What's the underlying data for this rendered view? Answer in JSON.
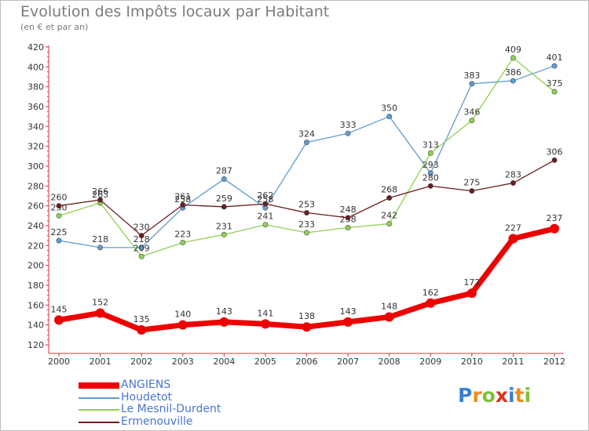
{
  "header": {
    "title": "Evolution des Impôts locaux par Habitant",
    "subtitle": "(en € et par an)"
  },
  "logo": {
    "text": "Proxiti",
    "colors": [
      "#3a7fd5",
      "#f08a1c",
      "#7cc23b",
      "#e0301e",
      "#3a7fd5",
      "#f08a1c",
      "#7cc23b"
    ]
  },
  "chart_data": {
    "type": "line",
    "title": "Evolution des Impôts locaux par Habitant",
    "subtitle": "(en € et par an)",
    "xlabel": "",
    "ylabel": "",
    "x": [
      2000,
      2001,
      2002,
      2003,
      2004,
      2005,
      2006,
      2007,
      2008,
      2009,
      2010,
      2011,
      2012
    ],
    "ylim": [
      120,
      420
    ],
    "yticks": [
      120,
      140,
      160,
      180,
      200,
      220,
      240,
      260,
      280,
      300,
      320,
      340,
      360,
      380,
      400,
      420
    ],
    "grid": false,
    "legend": "bottom-left",
    "series": [
      {
        "name": "Houdetot",
        "color": "#5f9bd1",
        "values": [
          225,
          218,
          218,
          258,
          287,
          258,
          324,
          333,
          350,
          293,
          383,
          386,
          401
        ]
      },
      {
        "name": "Le Mesnil-Durdent",
        "color": "#8fd04f",
        "values": [
          250,
          263,
          209,
          223,
          231,
          241,
          233,
          238,
          242,
          313,
          346,
          409,
          375
        ]
      },
      {
        "name": "Ermenouville",
        "color": "#6b1c1c",
        "values": [
          260,
          266,
          230,
          261,
          259,
          262,
          253,
          248,
          268,
          280,
          275,
          283,
          306
        ]
      },
      {
        "name": "ANGIENS",
        "color": "#ee0000",
        "values": [
          145,
          152,
          135,
          140,
          143,
          141,
          138,
          143,
          148,
          162,
          172,
          227,
          237
        ]
      }
    ],
    "legend_order": [
      "ANGIENS",
      "Houdetot",
      "Le Mesnil-Durdent",
      "Ermenouville"
    ]
  }
}
